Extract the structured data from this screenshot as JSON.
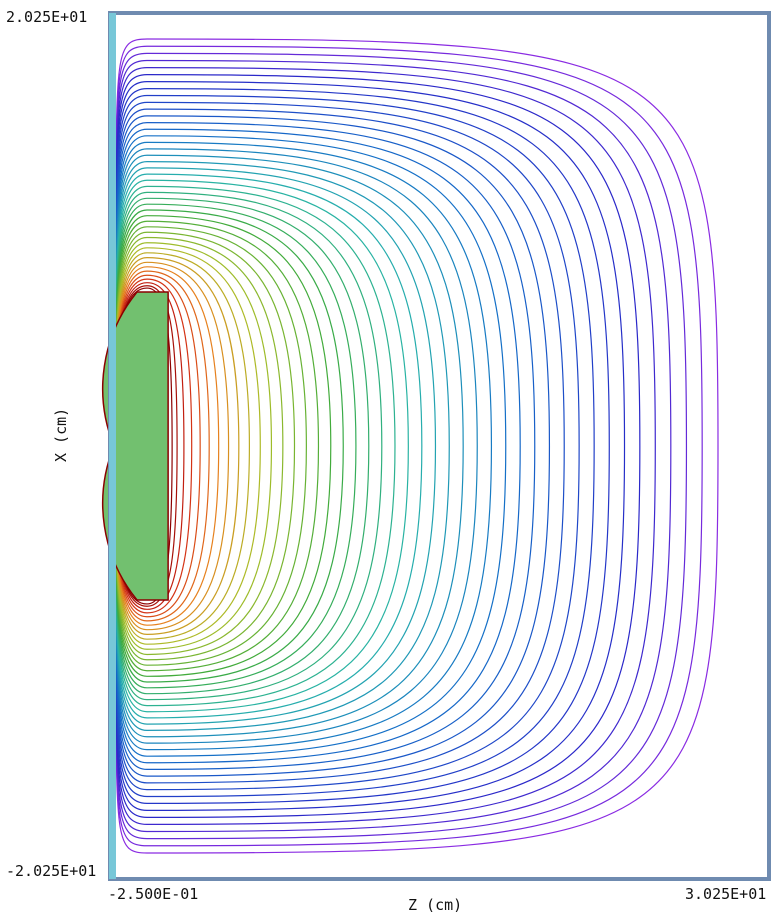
{
  "chart_data": {
    "type": "contour",
    "title": "",
    "xlabel": "Z (cm)",
    "ylabel": "X (cm)",
    "x_min_label": "-2.500E-01",
    "x_max_label": "3.025E+01",
    "y_min_label": "-2.025E+01",
    "y_max_label": "2.025E+01",
    "xlim": [
      -0.25,
      30.25
    ],
    "ylim": [
      -20.25,
      20.25
    ],
    "electrode": {
      "shape": "half-disk with flat face on the right",
      "center_z": 1.0,
      "radius": 7.2,
      "color": "#72c06f"
    },
    "contour_levels": 44,
    "colors": {
      "frame": "#6f8bb0",
      "left_boundary": "#77c7d8",
      "outer_contour": "#8a2be2",
      "inner_contour": "#8b0000"
    },
    "grid": false
  }
}
